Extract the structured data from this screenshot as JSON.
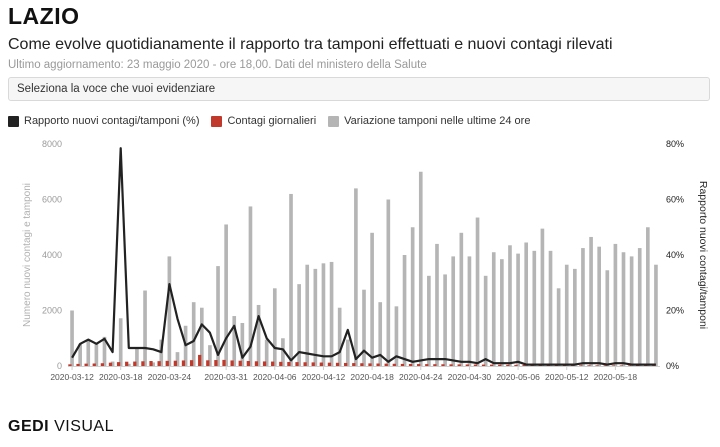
{
  "header": {
    "title": "LAZIO",
    "subtitle": "Come evolve quotidianamente il rapporto tra tamponi effettuati e nuovi contagi rilevati",
    "updated": "Ultimo aggiornamento: 23 maggio 2020 - ore 18,00. Dati del ministero della Salute"
  },
  "selector": {
    "placeholder": "Seleziona la voce che vuoi evidenziare"
  },
  "legend": {
    "ratio": "Rapporto nuovi contagi/tamponi (%)",
    "cases": "Contagi giornalieri",
    "tests": "Variazione tamponi nelle ultime 24 ore"
  },
  "colors": {
    "ratio": "#222222",
    "cases": "#c0392b",
    "tests": "#b5b5b5"
  },
  "logo": {
    "gedi": "GEDI",
    "visual": "VISUAL"
  },
  "chart_data": {
    "type": "bar",
    "x": [
      "2020-03-12",
      "2020-03-13",
      "2020-03-14",
      "2020-03-15",
      "2020-03-16",
      "2020-03-17",
      "2020-03-18",
      "2020-03-19",
      "2020-03-20",
      "2020-03-21",
      "2020-03-22",
      "2020-03-23",
      "2020-03-24",
      "2020-03-25",
      "2020-03-26",
      "2020-03-27",
      "2020-03-28",
      "2020-03-29",
      "2020-03-30",
      "2020-03-31",
      "2020-04-01",
      "2020-04-02",
      "2020-04-03",
      "2020-04-04",
      "2020-04-05",
      "2020-04-06",
      "2020-04-07",
      "2020-04-08",
      "2020-04-09",
      "2020-04-10",
      "2020-04-11",
      "2020-04-12",
      "2020-04-13",
      "2020-04-14",
      "2020-04-15",
      "2020-04-16",
      "2020-04-17",
      "2020-04-18",
      "2020-04-19",
      "2020-04-20",
      "2020-04-21",
      "2020-04-22",
      "2020-04-23",
      "2020-04-24",
      "2020-04-25",
      "2020-04-26",
      "2020-04-27",
      "2020-04-28",
      "2020-04-29",
      "2020-04-30",
      "2020-05-01",
      "2020-05-02",
      "2020-05-03",
      "2020-05-04",
      "2020-05-05",
      "2020-05-06",
      "2020-05-07",
      "2020-05-08",
      "2020-05-09",
      "2020-05-10",
      "2020-05-11",
      "2020-05-12",
      "2020-05-13",
      "2020-05-14",
      "2020-05-15",
      "2020-05-16",
      "2020-05-17",
      "2020-05-18",
      "2020-05-19",
      "2020-05-20",
      "2020-05-21",
      "2020-05-22",
      "2020-05-23"
    ],
    "x_tick_labels": [
      "2020-03-12",
      "2020-03-18",
      "2020-03-24",
      "2020-03-31",
      "2020-04-06",
      "2020-04-12",
      "2020-04-18",
      "2020-04-24",
      "2020-04-30",
      "2020-05-06",
      "2020-05-12",
      "2020-05-18"
    ],
    "series": [
      {
        "name": "Variazione tamponi nelle ultime 24 ore",
        "axis": "left",
        "kind": "bar",
        "values": [
          2000,
          800,
          950,
          820,
          1050,
          160,
          1720,
          80,
          650,
          2720,
          130,
          950,
          3950,
          500,
          1450,
          2300,
          2100,
          750,
          3600,
          5100,
          1800,
          1550,
          5750,
          2200,
          950,
          2800,
          1000,
          6200,
          2950,
          3650,
          3500,
          3700,
          3750,
          2100,
          950,
          6400,
          2750,
          4800,
          2300,
          6000,
          2150,
          4000,
          5000,
          7000,
          3250,
          4400,
          3300,
          3950,
          4800,
          3950,
          5350,
          3250,
          4100,
          3850,
          4350,
          4050,
          4450,
          4150,
          4950,
          4150,
          2800,
          3650,
          3500,
          4250,
          4650,
          4300,
          3450,
          4400,
          4100,
          3950,
          4250,
          5000,
          3650
        ]
      },
      {
        "name": "Contagi giornalieri",
        "axis": "left",
        "kind": "bar",
        "values": [
          60,
          75,
          85,
          90,
          100,
          120,
          140,
          155,
          160,
          170,
          180,
          175,
          185,
          190,
          200,
          210,
          400,
          205,
          215,
          220,
          200,
          190,
          180,
          170,
          165,
          160,
          150,
          145,
          140,
          135,
          130,
          125,
          120,
          115,
          110,
          105,
          100,
          95,
          90,
          85,
          80,
          75,
          72,
          70,
          68,
          65,
          62,
          60,
          58,
          55,
          52,
          50,
          48,
          45,
          43,
          40,
          38,
          36,
          34,
          32,
          30,
          28,
          26,
          25,
          24,
          23,
          22,
          21,
          20,
          19,
          18,
          17,
          15
        ]
      },
      {
        "name": "Rapporto nuovi contagi/tamponi (%)",
        "axis": "right",
        "kind": "line",
        "values": [
          3,
          8,
          9.5,
          8,
          9.8,
          5,
          78.5,
          6.5,
          6.5,
          6.5,
          6,
          5,
          29.5,
          17,
          7.5,
          9,
          15,
          12,
          4,
          10,
          14.5,
          3,
          7,
          18,
          10,
          6.5,
          6,
          2,
          5,
          4.5,
          4,
          3.5,
          3.5,
          5,
          13,
          2.5,
          5.5,
          3,
          4,
          1.5,
          3.5,
          2.5,
          1.5,
          2,
          2.5,
          2.5,
          2.5,
          2,
          1.5,
          1.5,
          1,
          2.5,
          1,
          1,
          1,
          1.5,
          0.5,
          0.5,
          0.5,
          0.5,
          0.5,
          0.5,
          0.5,
          1,
          1,
          1,
          0.5,
          1,
          1,
          0.5,
          0.5,
          0.5,
          0.5
        ]
      }
    ],
    "ylabel_left": "Numero nuovi contagi e tamponi",
    "ylabel_right": "Rapporto nuovi contagi/tamponi",
    "ylim_left": [
      0,
      8000
    ],
    "ylim_right": [
      0,
      80
    ],
    "yticks_left": [
      "0",
      "2000",
      "4000",
      "6000",
      "8000"
    ],
    "yticks_right": [
      "0%",
      "20%",
      "40%",
      "60%",
      "80%"
    ],
    "grid": false
  }
}
